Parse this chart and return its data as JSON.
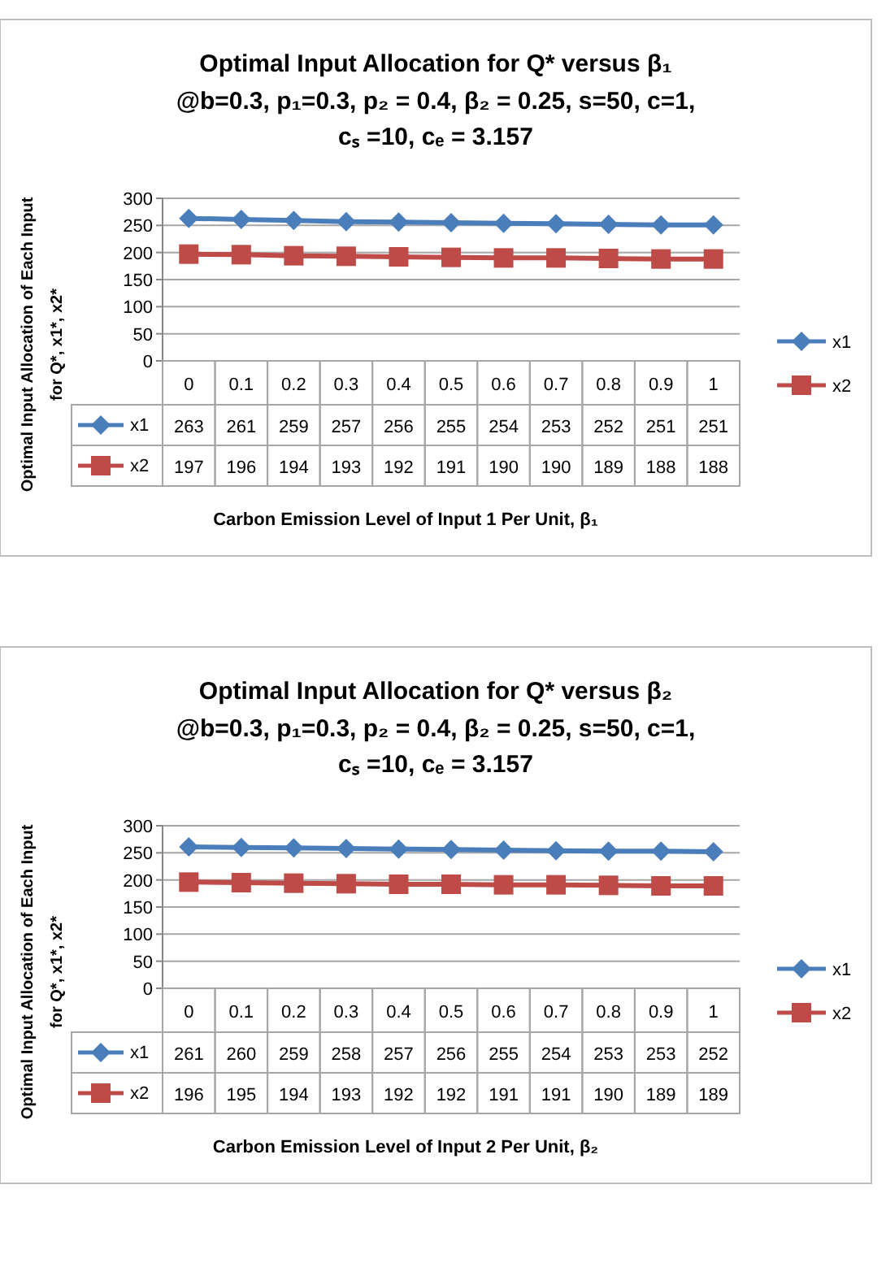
{
  "chart_data": [
    {
      "type": "line",
      "title": "Optimal Input Allocation for Q* versus  β₁",
      "subtitle": "@b=0.3, p₁=0.3, p₂ = 0.4, β₂  = 0.25, s=50, c=1,\ncₛ =10, cₑ = 3.157",
      "xlabel": "Carbon Emission  Level of Input 1 Per Unit, β₁",
      "ylabel": "Optimal Input Allocation  of Each  Input\nfor Q*, x1*, x2*",
      "categories": [
        "0",
        "0.1",
        "0.2",
        "0.3",
        "0.4",
        "0.5",
        "0.6",
        "0.7",
        "0.8",
        "0.9",
        "1"
      ],
      "ylim": [
        0,
        300
      ],
      "yticks": [
        0,
        50,
        100,
        150,
        200,
        250,
        300
      ],
      "grid": "y",
      "legend": "right",
      "data_labels": true,
      "series": [
        {
          "name": "x1",
          "color": "#4a7ebb",
          "marker": "diamond",
          "values": [
            263,
            261,
            259,
            257,
            256,
            255,
            254,
            253,
            252,
            251,
            251
          ]
        },
        {
          "name": "x2",
          "color": "#be4b48",
          "marker": "square",
          "values": [
            197,
            196,
            194,
            193,
            192,
            191,
            190,
            190,
            189,
            188,
            188
          ]
        }
      ]
    },
    {
      "type": "line",
      "title": "Optimal Input Allocation for Q* versus  β₂",
      "subtitle": "@b=0.3, p₁=0.3, p₂ = 0.4, β₂  = 0.25, s=50, c=1,\ncₛ =10, cₑ = 3.157",
      "xlabel": "Carbon Emission  Level of Input 2 Per Unit, β₂",
      "ylabel": "Optimal Input Allocation  of Each  Input\nfor Q*, x1*, x2*",
      "categories": [
        "0",
        "0.1",
        "0.2",
        "0.3",
        "0.4",
        "0.5",
        "0.6",
        "0.7",
        "0.8",
        "0.9",
        "1"
      ],
      "ylim": [
        0,
        300
      ],
      "yticks": [
        0,
        50,
        100,
        150,
        200,
        250,
        300
      ],
      "grid": "y",
      "legend": "right",
      "data_labels": true,
      "series": [
        {
          "name": "x1",
          "color": "#4a7ebb",
          "marker": "diamond",
          "values": [
            261,
            260,
            259,
            258,
            257,
            256,
            255,
            254,
            253,
            253,
            252
          ]
        },
        {
          "name": "x2",
          "color": "#be4b48",
          "marker": "square",
          "values": [
            196,
            195,
            194,
            193,
            192,
            192,
            191,
            191,
            190,
            189,
            189
          ]
        }
      ]
    }
  ]
}
